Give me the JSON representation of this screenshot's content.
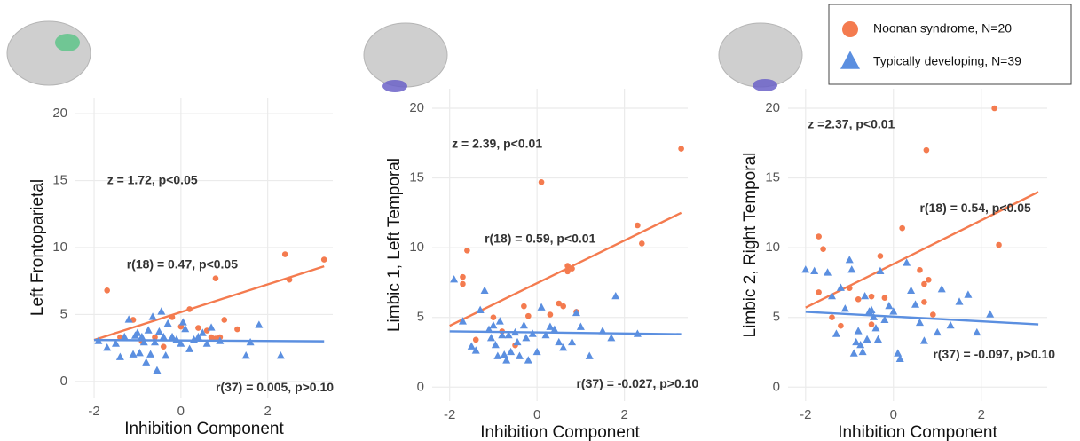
{
  "legend": {
    "position": "top-right",
    "entries": [
      {
        "label": "Noonan syndrome, N=20",
        "color": "#f47b4f",
        "marker": "circle"
      },
      {
        "label": "Typically developing, N=39",
        "color": "#5b8fe0",
        "marker": "triangle"
      }
    ]
  },
  "chart_data": [
    {
      "type": "scatter",
      "x_label": "Inhibition Component",
      "y_label": "Left Frontoparietal",
      "xlim": [
        -2.43,
        3.5
      ],
      "ylim": [
        -1.2,
        21.2
      ],
      "xticks": [
        -2,
        0,
        2
      ],
      "yticks": [
        0,
        5,
        10,
        15,
        20
      ],
      "grid": true,
      "series": [
        {
          "color": "#f47b4f",
          "marker": "circle",
          "x": [
            -1.7,
            -1.4,
            -1.1,
            -0.9,
            -0.6,
            -0.4,
            -0.2,
            0.0,
            0.2,
            0.4,
            0.6,
            0.7,
            0.8,
            0.8,
            0.9,
            1.0,
            1.3,
            2.4,
            2.5,
            3.3
          ],
          "values": [
            6.8,
            3.3,
            4.6,
            3.0,
            3.3,
            2.6,
            4.8,
            4.1,
            5.4,
            4.0,
            3.8,
            3.3,
            7.7,
            3.2,
            3.3,
            4.6,
            3.9,
            9.5,
            7.6,
            9.1
          ],
          "fit": {
            "x": [
              -2,
              3.3
            ],
            "values": [
              3.1,
              8.6
            ]
          }
        },
        {
          "color": "#5b8fe0",
          "marker": "triangle",
          "x": [
            -1.9,
            -1.7,
            -1.5,
            -1.4,
            -1.3,
            -1.2,
            -1.1,
            -1.05,
            -1.0,
            -0.95,
            -0.9,
            -0.85,
            -0.8,
            -0.75,
            -0.7,
            -0.65,
            -0.6,
            -0.55,
            -0.5,
            -0.45,
            -0.4,
            -0.35,
            -0.3,
            -0.2,
            -0.1,
            0.0,
            0.05,
            0.1,
            0.2,
            0.3,
            0.4,
            0.5,
            0.6,
            0.7,
            0.9,
            1.5,
            1.6,
            1.8,
            2.3
          ],
          "values": [
            3.0,
            2.5,
            2.8,
            1.8,
            3.3,
            4.6,
            2.0,
            3.4,
            3.6,
            2.1,
            3.3,
            2.9,
            1.4,
            3.8,
            2.0,
            4.8,
            2.9,
            0.8,
            3.7,
            5.2,
            3.3,
            1.9,
            4.3,
            3.3,
            3.1,
            2.8,
            4.4,
            3.9,
            2.4,
            3.1,
            3.3,
            3.6,
            2.8,
            4.0,
            3.0,
            1.9,
            2.9,
            4.2,
            1.9
          ],
          "fit": {
            "x": [
              -2,
              3.3
            ],
            "values": [
              3.1,
              3.0
            ]
          }
        }
      ],
      "annotations": [
        {
          "text": "z = 1.72, p<0.05",
          "x": -1.7,
          "y": 15,
          "color": "#000000"
        },
        {
          "text": "r(18) = 0.47, p<0.05",
          "x": -1.25,
          "y": 8.7,
          "color": "#f47b4f"
        },
        {
          "text": "r(37) = 0.005, p>0.10",
          "x": 0.8,
          "y": -0.5,
          "color": "#5b8fe0"
        }
      ]
    },
    {
      "type": "scatter",
      "x_label": "Inhibition Component",
      "y_label": "Limbic 1, Left Temporal",
      "xlim": [
        -2.4,
        3.45
      ],
      "ylim": [
        -1.0,
        21.4
      ],
      "xticks": [
        -2,
        0,
        2
      ],
      "yticks": [
        0,
        5,
        10,
        15,
        20
      ],
      "grid": true,
      "series": [
        {
          "color": "#f47b4f",
          "marker": "circle",
          "x": [
            -1.7,
            -1.7,
            -1.6,
            -1.4,
            -1.0,
            -0.8,
            -0.5,
            -0.3,
            -0.2,
            0.1,
            0.3,
            0.5,
            0.6,
            0.7,
            0.7,
            0.8,
            0.9,
            2.3,
            2.4,
            3.3
          ],
          "values": [
            7.9,
            7.4,
            9.8,
            3.4,
            5.0,
            4.0,
            3.0,
            5.8,
            5.1,
            14.7,
            5.2,
            6.0,
            5.8,
            8.7,
            8.3,
            8.5,
            5.4,
            11.6,
            10.3,
            17.1
          ],
          "fit": {
            "x": [
              -2,
              3.3
            ],
            "values": [
              4.4,
              12.5
            ]
          }
        },
        {
          "color": "#5b8fe0",
          "marker": "triangle",
          "x": [
            -1.9,
            -1.7,
            -1.5,
            -1.4,
            -1.3,
            -1.2,
            -1.1,
            -1.05,
            -1.0,
            -0.95,
            -0.9,
            -0.85,
            -0.8,
            -0.75,
            -0.7,
            -0.65,
            -0.6,
            -0.5,
            -0.45,
            -0.4,
            -0.3,
            -0.25,
            -0.2,
            -0.1,
            0.0,
            0.1,
            0.2,
            0.3,
            0.4,
            0.5,
            0.6,
            0.8,
            0.9,
            1.0,
            1.2,
            1.5,
            1.7,
            1.8,
            2.3
          ],
          "values": [
            7.7,
            4.7,
            2.9,
            2.6,
            5.5,
            6.9,
            4.1,
            3.5,
            4.4,
            3.0,
            2.2,
            4.7,
            3.7,
            2.3,
            1.9,
            3.7,
            2.5,
            3.9,
            3.2,
            2.2,
            4.4,
            3.5,
            1.9,
            3.8,
            2.5,
            5.7,
            3.7,
            4.3,
            4.1,
            3.2,
            2.8,
            3.2,
            5.3,
            4.3,
            2.2,
            4.0,
            3.5,
            6.5,
            3.8
          ],
          "fit": {
            "x": [
              -2,
              3.3
            ],
            "values": [
              4.0,
              3.8
            ]
          }
        }
      ],
      "annotations": [
        {
          "text": "z = 2.39, p<0.01",
          "x": -1.95,
          "y": 17.4,
          "color": "#000000"
        },
        {
          "text": "r(18) = 0.59, p<0.01",
          "x": -1.2,
          "y": 10.6,
          "color": "#f47b4f"
        },
        {
          "text": "r(37) = -0.027, p>0.10",
          "x": 0.9,
          "y": 0.2,
          "color": "#5b8fe0"
        }
      ]
    },
    {
      "type": "scatter",
      "x_label": "Inhibition Component",
      "y_label": "Limbic 2, Right Temporal",
      "xlim": [
        -2.4,
        3.5
      ],
      "ylim": [
        -1.0,
        21.4
      ],
      "xticks": [
        -2,
        0,
        2
      ],
      "yticks": [
        0,
        5,
        10,
        15,
        20
      ],
      "grid": true,
      "series": [
        {
          "color": "#f47b4f",
          "marker": "circle",
          "x": [
            -1.7,
            -1.6,
            -1.7,
            -1.4,
            -1.2,
            -1.0,
            -0.8,
            -0.5,
            -0.5,
            -0.3,
            -0.2,
            0.2,
            0.6,
            0.7,
            0.75,
            0.8,
            0.9,
            0.7,
            2.3,
            2.4
          ],
          "values": [
            10.8,
            9.9,
            6.8,
            5.0,
            4.4,
            7.1,
            6.3,
            6.5,
            4.5,
            9.4,
            6.4,
            11.4,
            8.4,
            6.1,
            17.0,
            7.7,
            5.2,
            7.4,
            20.0,
            10.2
          ],
          "fit": {
            "x": [
              -2,
              3.3
            ],
            "values": [
              5.7,
              14.0
            ]
          }
        },
        {
          "color": "#5b8fe0",
          "marker": "triangle",
          "x": [
            -2.0,
            -1.8,
            -1.5,
            -1.4,
            -1.3,
            -1.2,
            -1.1,
            -1.0,
            -0.95,
            -0.9,
            -0.85,
            -0.8,
            -0.75,
            -0.7,
            -0.65,
            -0.6,
            -0.55,
            -0.5,
            -0.45,
            -0.4,
            -0.35,
            -0.3,
            -0.2,
            -0.1,
            0.0,
            0.1,
            0.15,
            0.3,
            0.4,
            0.5,
            0.6,
            0.7,
            1.0,
            1.1,
            1.3,
            1.5,
            1.7,
            1.9,
            2.2
          ],
          "values": [
            8.4,
            8.3,
            8.2,
            6.5,
            3.8,
            7.1,
            5.6,
            9.1,
            8.4,
            2.4,
            3.2,
            4.0,
            3.0,
            2.5,
            6.5,
            3.4,
            5.4,
            5.5,
            5.0,
            4.2,
            3.4,
            8.3,
            4.8,
            5.8,
            5.4,
            2.4,
            2.0,
            8.9,
            6.9,
            5.9,
            4.6,
            3.3,
            3.9,
            7.0,
            4.4,
            6.1,
            6.6,
            3.9,
            5.2
          ],
          "fit": {
            "x": [
              -2,
              3.3
            ],
            "values": [
              5.4,
              4.5
            ]
          }
        }
      ],
      "annotations": [
        {
          "text": "z =2.37, p<0.01",
          "x": -1.95,
          "y": 18.8,
          "color": "#000000"
        },
        {
          "text": "r(18) = 0.54, p<0.05",
          "x": 0.6,
          "y": 12.8,
          "color": "#f47b4f"
        },
        {
          "text": "r(37) = -0.097, p>0.10",
          "x": 0.9,
          "y": 2.3,
          "color": "#5b8fe0"
        }
      ]
    }
  ]
}
